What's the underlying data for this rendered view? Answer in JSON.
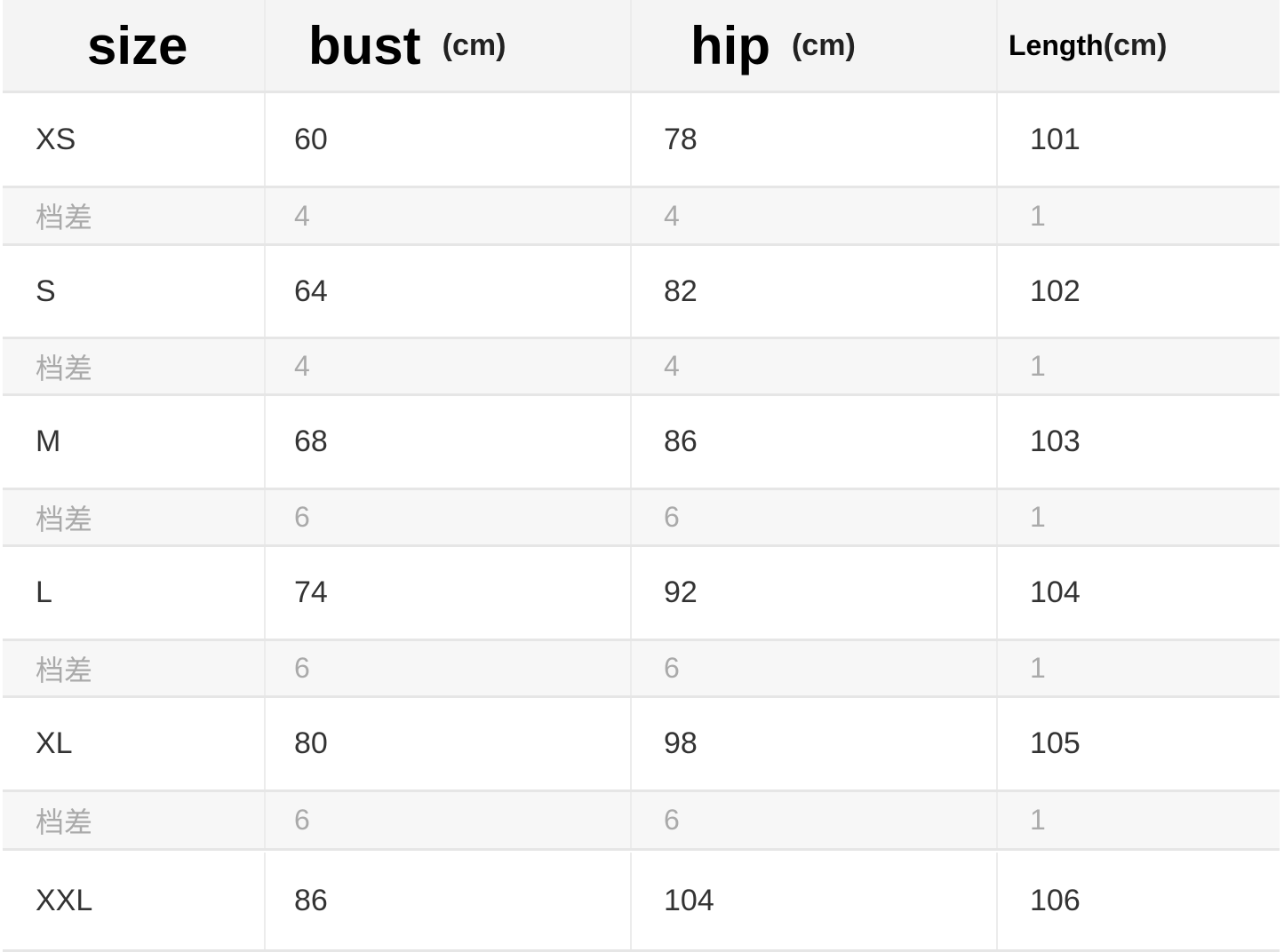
{
  "header": {
    "size": "size",
    "bust": "bust",
    "bust_unit": "(cm)",
    "hip": "hip",
    "hip_unit": "(cm)",
    "length": "Length",
    "length_unit": "(cm)"
  },
  "rows": [
    {
      "type": "size",
      "cells": [
        "XS",
        "60",
        "78",
        "101"
      ]
    },
    {
      "type": "diff",
      "cells": [
        "档差",
        "4",
        "4",
        "1"
      ]
    },
    {
      "type": "size",
      "cells": [
        "S",
        "64",
        "82",
        "102"
      ]
    },
    {
      "type": "diff",
      "cells": [
        "档差",
        "4",
        "4",
        "1"
      ]
    },
    {
      "type": "size",
      "cells": [
        "M",
        "68",
        "86",
        "103"
      ]
    },
    {
      "type": "diff",
      "cells": [
        "档差",
        "6",
        "6",
        "1"
      ]
    },
    {
      "type": "size",
      "cells": [
        "L",
        "74",
        "92",
        "104"
      ]
    },
    {
      "type": "diff",
      "cells": [
        "档差",
        "6",
        "6",
        "1"
      ]
    },
    {
      "type": "size",
      "cells": [
        "XL",
        "80",
        "98",
        "105"
      ]
    },
    {
      "type": "diff",
      "cells": [
        "档差",
        "6",
        "6",
        "1"
      ]
    },
    {
      "type": "size",
      "cells": [
        "XXL",
        "86",
        "104",
        "106"
      ]
    }
  ]
}
